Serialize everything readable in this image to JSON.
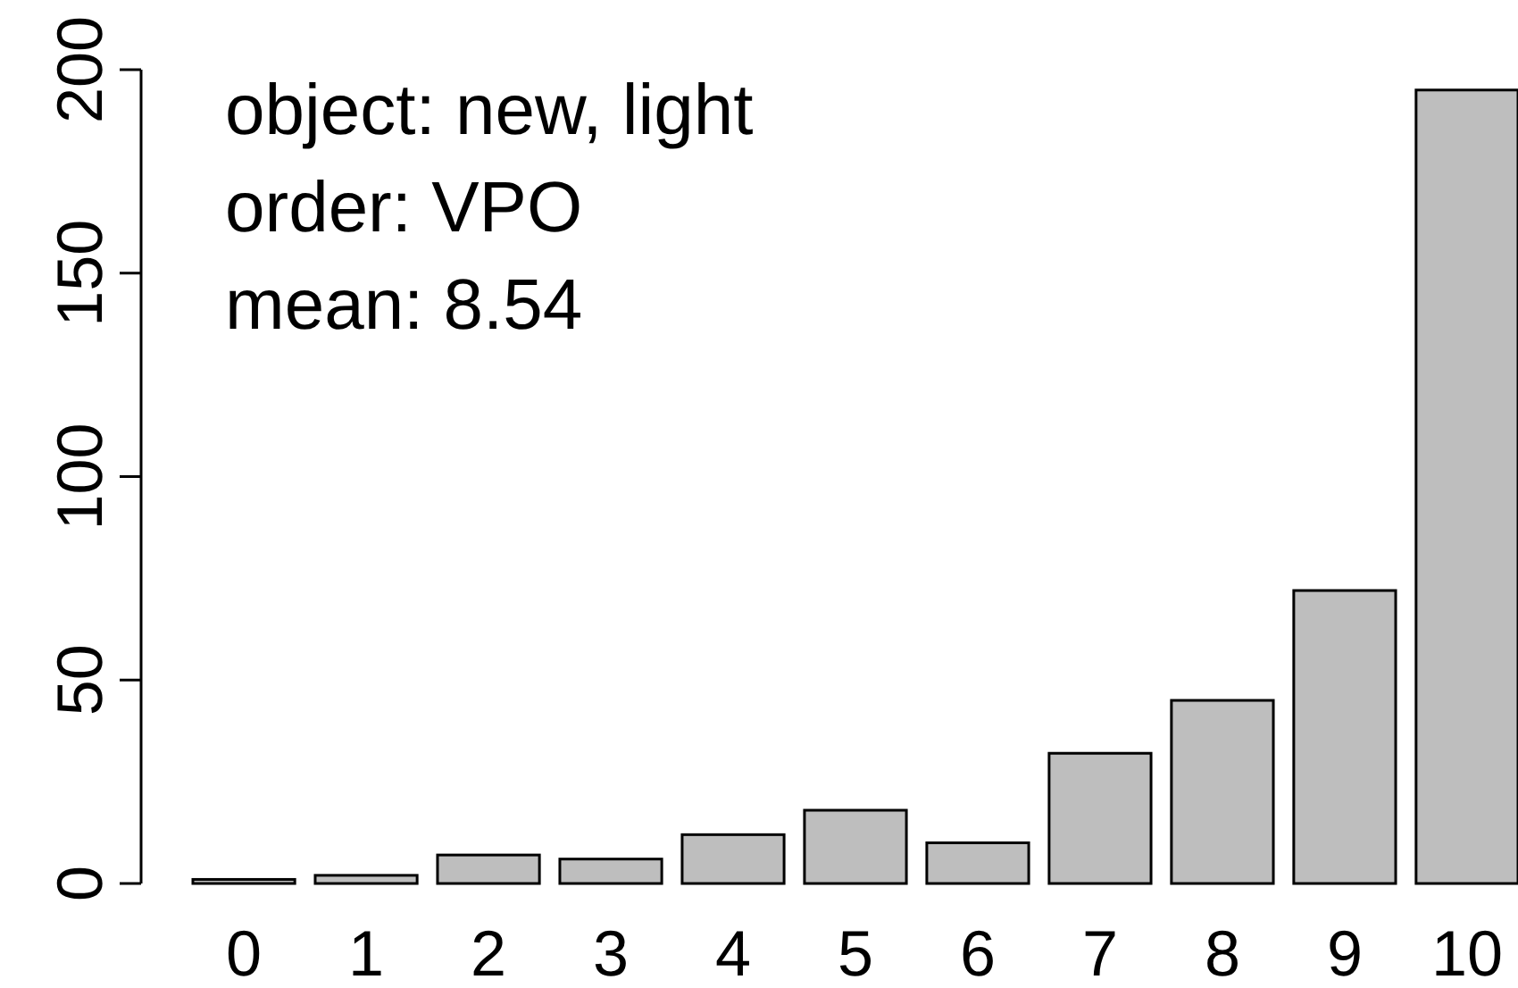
{
  "chart_data": {
    "type": "bar",
    "categories": [
      "0",
      "1",
      "2",
      "3",
      "4",
      "5",
      "6",
      "7",
      "8",
      "9",
      "10"
    ],
    "values": [
      1,
      2,
      7,
      6,
      12,
      18,
      10,
      32,
      45,
      72,
      195
    ],
    "color": "#bebebe",
    "ylim": [
      0,
      200
    ],
    "yticks": [
      0,
      50,
      100,
      150,
      200
    ],
    "annotations": [
      "object: new, light",
      "order: VPO",
      "mean: 8.54"
    ]
  }
}
